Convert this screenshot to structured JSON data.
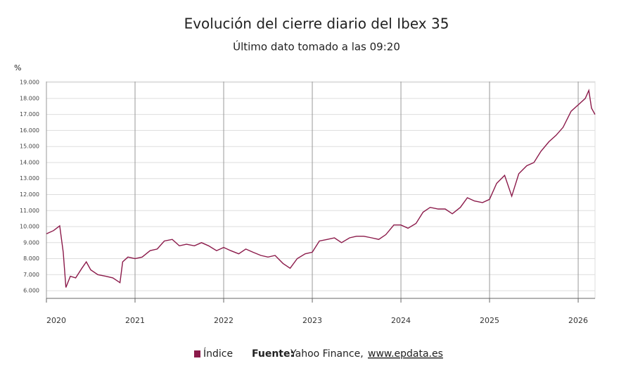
{
  "chart_data": {
    "type": "line",
    "title": "Evolución del cierre diario del Ibex 35",
    "subtitle": "Último dato tomado a las 09:20",
    "y_unit": "%",
    "x": [
      2020.0,
      2020.08,
      2020.15,
      2020.19,
      2020.22,
      2020.27,
      2020.33,
      2020.4,
      2020.45,
      2020.5,
      2020.58,
      2020.67,
      2020.75,
      2020.83,
      2020.86,
      2020.92,
      2021.0,
      2021.08,
      2021.17,
      2021.25,
      2021.33,
      2021.42,
      2021.5,
      2021.58,
      2021.67,
      2021.75,
      2021.83,
      2021.92,
      2022.0,
      2022.08,
      2022.17,
      2022.25,
      2022.33,
      2022.42,
      2022.5,
      2022.58,
      2022.67,
      2022.75,
      2022.83,
      2022.92,
      2023.0,
      2023.08,
      2023.17,
      2023.25,
      2023.33,
      2023.42,
      2023.5,
      2023.58,
      2023.67,
      2023.75,
      2023.83,
      2023.92,
      2024.0,
      2024.08,
      2024.17,
      2024.25,
      2024.33,
      2024.42,
      2024.5,
      2024.58,
      2024.67,
      2024.75,
      2024.83,
      2024.92,
      2025.0,
      2025.08,
      2025.17,
      2025.25,
      2025.33,
      2025.42,
      2025.5,
      2025.58,
      2025.67,
      2025.75,
      2025.83,
      2025.92,
      2026.0,
      2026.08,
      2026.12,
      2026.15,
      2026.19
    ],
    "series": [
      {
        "name": "Índice",
        "color": "#8b1a4a",
        "values": [
          9550,
          9750,
          10050,
          8400,
          6200,
          6900,
          6800,
          7400,
          7800,
          7300,
          7000,
          6900,
          6800,
          6500,
          7800,
          8100,
          8000,
          8100,
          8500,
          8600,
          9100,
          9200,
          8800,
          8900,
          8800,
          9000,
          8800,
          8500,
          8700,
          8500,
          8300,
          8600,
          8400,
          8200,
          8100,
          8200,
          7700,
          7400,
          8000,
          8300,
          8400,
          9100,
          9200,
          9300,
          9000,
          9300,
          9400,
          9400,
          9300,
          9200,
          9500,
          10100,
          10100,
          9900,
          10200,
          10900,
          11200,
          11100,
          11100,
          10800,
          11200,
          11800,
          11600,
          11500,
          11700,
          12700,
          13200,
          11900,
          13300,
          13800,
          14000,
          14700,
          15300,
          15700,
          16200,
          17200,
          17600,
          18000,
          18500,
          17400,
          17000
        ]
      }
    ],
    "xlim": [
      2020.0,
      2026.19
    ],
    "xticks": [
      2020,
      2021,
      2022,
      2023,
      2024,
      2025,
      2026
    ],
    "ylim": [
      5520,
      19050
    ],
    "yticks": [
      {
        "value": 6000,
        "label": "6.000"
      },
      {
        "value": 7000,
        "label": "7.000"
      },
      {
        "value": 8000,
        "label": "8.000"
      },
      {
        "value": 9000,
        "label": "9.000"
      },
      {
        "value": 10000,
        "label": "10.000"
      },
      {
        "value": 11000,
        "label": "11.000"
      },
      {
        "value": 12000,
        "label": "12.000"
      },
      {
        "value": 13000,
        "label": "13.000"
      },
      {
        "value": 14000,
        "label": "14.000"
      },
      {
        "value": 15000,
        "label": "15.000"
      },
      {
        "value": 16000,
        "label": "16.000"
      },
      {
        "value": 17000,
        "label": "17.000"
      },
      {
        "value": 18000,
        "label": "18.000"
      },
      {
        "value": 19000,
        "label": "19.000"
      }
    ],
    "grid": true,
    "source_label": "Fuente:",
    "source_text": "Yahoo Finance,",
    "source_link": "www.epdata.es"
  }
}
